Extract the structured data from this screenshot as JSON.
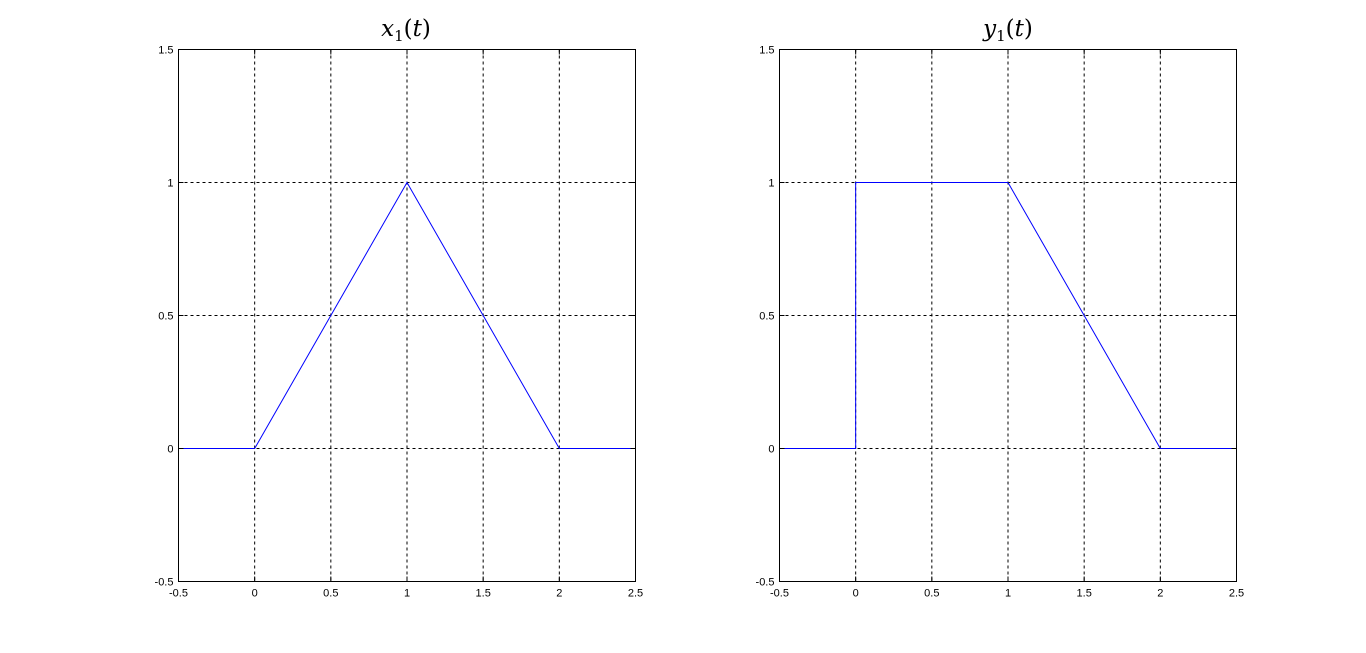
{
  "chart_data": [
    {
      "type": "line",
      "title": {
        "symbol": "x",
        "subscript": "1",
        "argument": "t"
      },
      "xlim": [
        -0.5,
        2.5
      ],
      "ylim": [
        -0.5,
        1.5
      ],
      "xticks": [
        "-0.5",
        "0",
        "0.5",
        "1",
        "1.5",
        "2",
        "2.5"
      ],
      "yticks": [
        "-0.5",
        "0",
        "0.5",
        "1",
        "1.5"
      ],
      "grid": true,
      "series": [
        {
          "color": "#0000ff",
          "x": [
            -0.5,
            0,
            1,
            2,
            2.5
          ],
          "y": [
            0,
            0,
            1,
            0,
            0
          ]
        }
      ]
    },
    {
      "type": "line",
      "title": {
        "symbol": "y",
        "subscript": "1",
        "argument": "t"
      },
      "xlim": [
        -0.5,
        2.5
      ],
      "ylim": [
        -0.5,
        1.5
      ],
      "xticks": [
        "-0.5",
        "0",
        "0.5",
        "1",
        "1.5",
        "2",
        "2.5"
      ],
      "yticks": [
        "-0.5",
        "0",
        "0.5",
        "1",
        "1.5"
      ],
      "grid": true,
      "series": [
        {
          "color": "#0000ff",
          "x": [
            -0.5,
            0,
            0,
            1,
            2,
            2.5
          ],
          "y": [
            0,
            0,
            1,
            1,
            0,
            0
          ]
        }
      ]
    }
  ]
}
